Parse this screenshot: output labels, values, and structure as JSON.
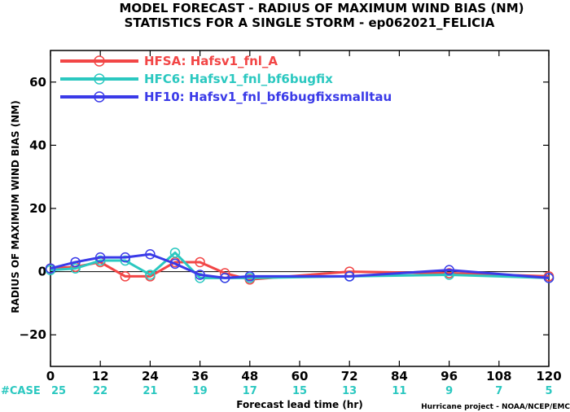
{
  "title_lines": [
    "MODEL FORECAST - RADIUS OF MAXIMUM WIND BIAS (NM)",
    "STATISTICS FOR A SINGLE STORM - ep062021_FELICIA"
  ],
  "credit": "Hurricane project - NOAA/NCEP/EMC",
  "case_prefix": "#CASE",
  "chart_data": {
    "type": "line",
    "xlabel": "Forecast lead time (hr)",
    "ylabel": "RADIUS OF MAXIMUM WIND BIAS (NM)",
    "xlim": [
      0,
      120
    ],
    "ylim": [
      -30,
      70
    ],
    "x_ticks": [
      0,
      12,
      24,
      36,
      48,
      60,
      72,
      84,
      96,
      108,
      120
    ],
    "y_ticks": [
      -20,
      0,
      20,
      40,
      60
    ],
    "zero_line": true,
    "case_counts": [
      {
        "x": 0,
        "n": "25"
      },
      {
        "x": 12,
        "n": "22"
      },
      {
        "x": 24,
        "n": "21"
      },
      {
        "x": 36,
        "n": "19"
      },
      {
        "x": 48,
        "n": "17"
      },
      {
        "x": 60,
        "n": "15"
      },
      {
        "x": 72,
        "n": "13"
      },
      {
        "x": 84,
        "n": "11"
      },
      {
        "x": 96,
        "n": "9"
      },
      {
        "x": 108,
        "n": "7"
      },
      {
        "x": 120,
        "n": "5"
      }
    ],
    "legend_position": "top-left",
    "series": [
      {
        "name": "HFSA: Hafsv1_fnl_A",
        "color": "#f24646",
        "points": [
          [
            0,
            1
          ],
          [
            6,
            1.5
          ],
          [
            12,
            3
          ],
          [
            18,
            -1.5
          ],
          [
            24,
            -1.5
          ],
          [
            30,
            3
          ],
          [
            36,
            3
          ],
          [
            42,
            -0.5
          ],
          [
            48,
            -2.5
          ],
          [
            72,
            0
          ],
          [
            96,
            -0.5
          ],
          [
            120,
            -1.5
          ]
        ]
      },
      {
        "name": "HFC6: Hafsv1_fnl_bf6bugfix",
        "color": "#2bc8c0",
        "points": [
          [
            0,
            0.5
          ],
          [
            6,
            1
          ],
          [
            12,
            3.5
          ],
          [
            18,
            3.5
          ],
          [
            24,
            -1
          ],
          [
            30,
            6
          ],
          [
            36,
            -2
          ],
          [
            42,
            -2
          ],
          [
            48,
            -2
          ],
          [
            72,
            -1.5
          ],
          [
            96,
            -1
          ],
          [
            120,
            -2
          ]
        ]
      },
      {
        "name": "HF10: Hafsv1_fnl_bf6bugfixsmalltau",
        "color": "#3a3ae8",
        "points": [
          [
            0,
            1
          ],
          [
            6,
            3
          ],
          [
            12,
            4.5
          ],
          [
            18,
            4.5
          ],
          [
            24,
            5.5
          ],
          [
            30,
            2.5
          ],
          [
            36,
            -1
          ],
          [
            42,
            -2
          ],
          [
            48,
            -1.5
          ],
          [
            72,
            -1.5
          ],
          [
            96,
            0.5
          ],
          [
            120,
            -2
          ]
        ]
      }
    ]
  }
}
